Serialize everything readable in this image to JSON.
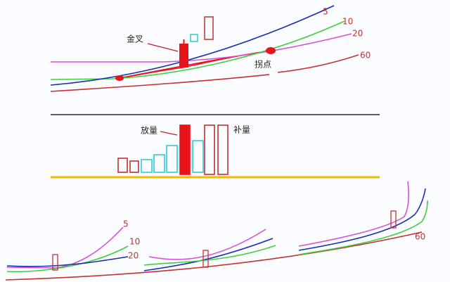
{
  "price_panel": {
    "ma_labels": [
      "5",
      "10",
      "20",
      "60"
    ],
    "cross_label": "金叉",
    "turn_label": "拐点"
  },
  "volume_panel": {
    "surge_label": "放量",
    "fill_label": "补量"
  },
  "examples_panel": {
    "ma_labels": [
      "5",
      "10",
      "20",
      "60"
    ]
  }
}
